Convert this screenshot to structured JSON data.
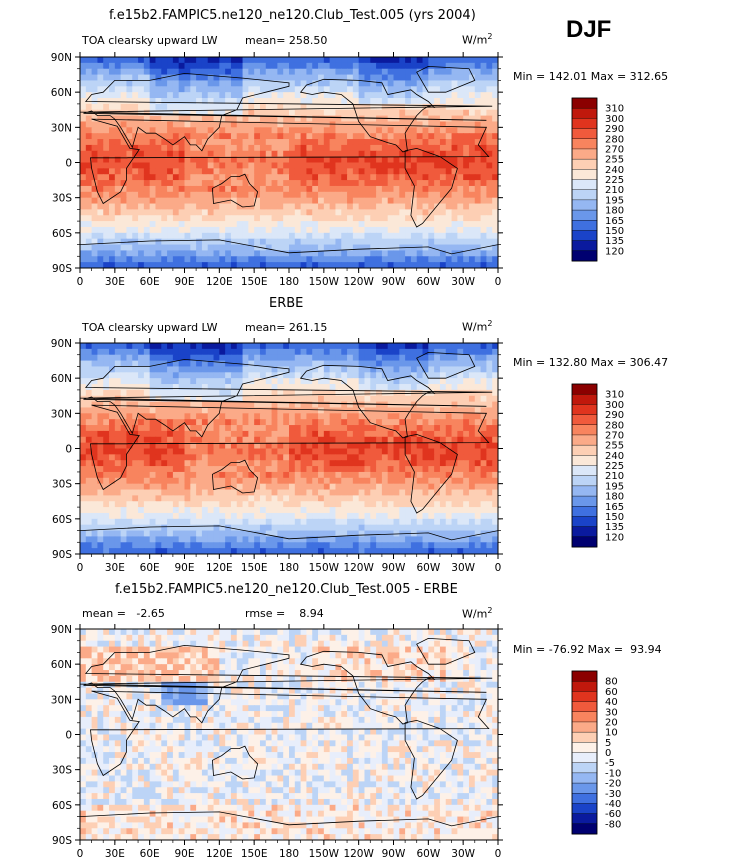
{
  "season": "DJF",
  "units": "W/m",
  "units_sup": "2",
  "x_ticks": [
    "0",
    "30E",
    "60E",
    "90E",
    "120E",
    "150E",
    "180",
    "150W",
    "120W",
    "90W",
    "60W",
    "30W",
    "0"
  ],
  "y_ticks": [
    "90N",
    "60N",
    "30N",
    "0",
    "30S",
    "60S",
    "90S"
  ],
  "panels": [
    {
      "title": "f.e15b2.FAMPIC5.ne120_ne120.Club_Test.005 (yrs 2004)",
      "left_text": "TOA clearsky upward LW",
      "mean_text": "mean= 258.50",
      "rmse_text": "",
      "minmax": "Min = 142.01 Max = 312.65",
      "colorbar_levels": [
        "310",
        "300",
        "290",
        "280",
        "270",
        "255",
        "240",
        "225",
        "210",
        "195",
        "180",
        "165",
        "150",
        "135",
        "120"
      ],
      "colorbar_colors": [
        "#8b0000",
        "#c0180c",
        "#e0341e",
        "#f05a3c",
        "#f8845e",
        "#fbaa88",
        "#fdcfb4",
        "#fbe8d8",
        "#dbe7f8",
        "#bcd4f6",
        "#95b7f2",
        "#6a97ea",
        "#3f70e0",
        "#1a43c8",
        "#0a1a9e",
        "#000070"
      ],
      "map_type": "abs"
    },
    {
      "title": "ERBE",
      "left_text": "TOA clearsky upward LW",
      "mean_text": "mean= 261.15",
      "rmse_text": "",
      "minmax": "Min = 132.80 Max = 306.47",
      "colorbar_levels": [
        "310",
        "300",
        "290",
        "280",
        "270",
        "255",
        "240",
        "225",
        "210",
        "195",
        "180",
        "165",
        "150",
        "135",
        "120"
      ],
      "colorbar_colors": [
        "#8b0000",
        "#c0180c",
        "#e0341e",
        "#f05a3c",
        "#f8845e",
        "#fbaa88",
        "#fdcfb4",
        "#fbe8d8",
        "#dbe7f8",
        "#bcd4f6",
        "#95b7f2",
        "#6a97ea",
        "#3f70e0",
        "#1a43c8",
        "#0a1a9e",
        "#000070"
      ],
      "map_type": "abs"
    },
    {
      "title": "f.e15b2.FAMPIC5.ne120_ne120.Club_Test.005 - ERBE",
      "left_text": "mean =   -2.65",
      "mean_text": "",
      "rmse_text": "rmse =    8.94",
      "minmax": "Min = -76.92 Max =  93.94",
      "colorbar_levels": [
        "80",
        "60",
        "40",
        "30",
        "20",
        "10",
        "5",
        "0",
        "-5",
        "-10",
        "-20",
        "-30",
        "-40",
        "-60",
        "-80"
      ],
      "colorbar_colors": [
        "#8b0000",
        "#c0180c",
        "#e0341e",
        "#f05a3c",
        "#f8845e",
        "#fbaa88",
        "#fdcfb4",
        "#fdf1e8",
        "#e8eefb",
        "#bcd4f6",
        "#95b7f2",
        "#6a97ea",
        "#3f70e0",
        "#1a43c8",
        "#0a1a9e",
        "#000070"
      ],
      "map_type": "diff"
    }
  ]
}
